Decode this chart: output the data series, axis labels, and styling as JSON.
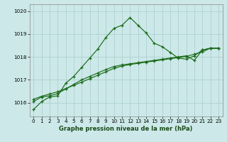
{
  "title": "Graphe pression niveau de la mer (hPa)",
  "bg_color": "#cce8e8",
  "grid_color": "#aacccc",
  "line_color": "#1a6b1a",
  "xlim": [
    -0.5,
    23.5
  ],
  "ylim": [
    1015.4,
    1020.3
  ],
  "yticks": [
    1016,
    1017,
    1018,
    1019,
    1020
  ],
  "xticks": [
    0,
    1,
    2,
    3,
    4,
    5,
    6,
    7,
    8,
    9,
    10,
    11,
    12,
    13,
    14,
    15,
    16,
    17,
    18,
    19,
    20,
    21,
    22,
    23
  ],
  "series1": [
    1015.7,
    1016.05,
    1016.25,
    1016.3,
    1016.85,
    1017.15,
    1017.55,
    1017.95,
    1018.35,
    1018.85,
    1019.25,
    1019.38,
    1019.72,
    1019.38,
    1019.05,
    1018.6,
    1018.45,
    1018.2,
    1017.95,
    1017.9,
    1018.05,
    1018.3,
    1018.38,
    1018.38
  ],
  "series2": [
    1016.05,
    1016.25,
    1016.3,
    1016.4,
    1016.6,
    1016.8,
    1017.0,
    1017.15,
    1017.3,
    1017.45,
    1017.58,
    1017.65,
    1017.7,
    1017.75,
    1017.8,
    1017.85,
    1017.9,
    1017.95,
    1018.0,
    1018.05,
    1017.85,
    1018.3,
    1018.38,
    1018.38
  ],
  "series3": [
    1016.15,
    1016.28,
    1016.38,
    1016.48,
    1016.62,
    1016.76,
    1016.9,
    1017.05,
    1017.2,
    1017.35,
    1017.5,
    1017.6,
    1017.67,
    1017.72,
    1017.77,
    1017.82,
    1017.87,
    1017.92,
    1017.97,
    1018.02,
    1018.12,
    1018.22,
    1018.38,
    1018.38
  ],
  "title_fontsize": 6.0,
  "tick_fontsize": 5.2,
  "spine_color": "#888888"
}
